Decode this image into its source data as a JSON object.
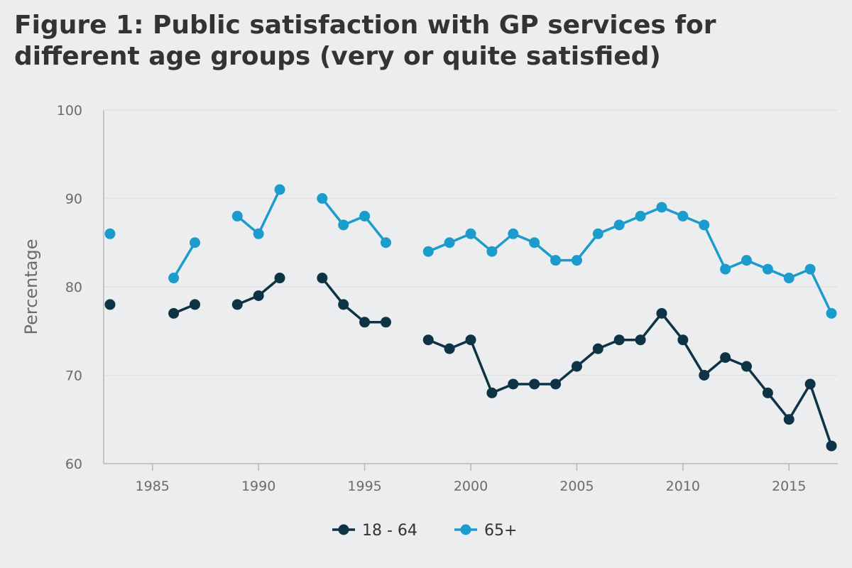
{
  "title": {
    "line1": "Figure 1: Public satisfaction with GP services for",
    "line2": "different age groups (very or quite satisfied)"
  },
  "chart_data": {
    "type": "line",
    "title": "Figure 1: Public satisfaction with GP services for different age groups (very or quite satisfied)",
    "xlabel": "",
    "ylabel": "Percentage",
    "xlim": [
      1983,
      2017
    ],
    "ylim": [
      60,
      100
    ],
    "x_ticks": [
      1985,
      1990,
      1995,
      2000,
      2005,
      2010,
      2015
    ],
    "y_ticks": [
      60,
      70,
      80,
      90,
      100
    ],
    "grid": "horizontal",
    "legend_position": "bottom-center",
    "x": [
      1983,
      1984,
      1985,
      1986,
      1987,
      1988,
      1989,
      1990,
      1991,
      1992,
      1993,
      1994,
      1995,
      1996,
      1997,
      1998,
      1999,
      2000,
      2001,
      2002,
      2003,
      2004,
      2005,
      2006,
      2007,
      2008,
      2009,
      2010,
      2011,
      2012,
      2013,
      2014,
      2015,
      2016,
      2017
    ],
    "series": [
      {
        "name": "18 - 64",
        "color": "#0d3344",
        "values": [
          78,
          null,
          null,
          77,
          78,
          null,
          78,
          79,
          81,
          null,
          81,
          78,
          76,
          76,
          null,
          74,
          73,
          74,
          68,
          69,
          69,
          69,
          71,
          73,
          74,
          74,
          77,
          74,
          70,
          72,
          71,
          68,
          65,
          69,
          62
        ]
      },
      {
        "name": "65+",
        "color": "#1c9bcd",
        "values": [
          86,
          null,
          null,
          81,
          85,
          null,
          88,
          86,
          91,
          null,
          90,
          87,
          88,
          85,
          null,
          84,
          85,
          86,
          84,
          86,
          85,
          83,
          83,
          86,
          87,
          88,
          89,
          88,
          87,
          82,
          83,
          82,
          81,
          82,
          77
        ]
      }
    ]
  }
}
